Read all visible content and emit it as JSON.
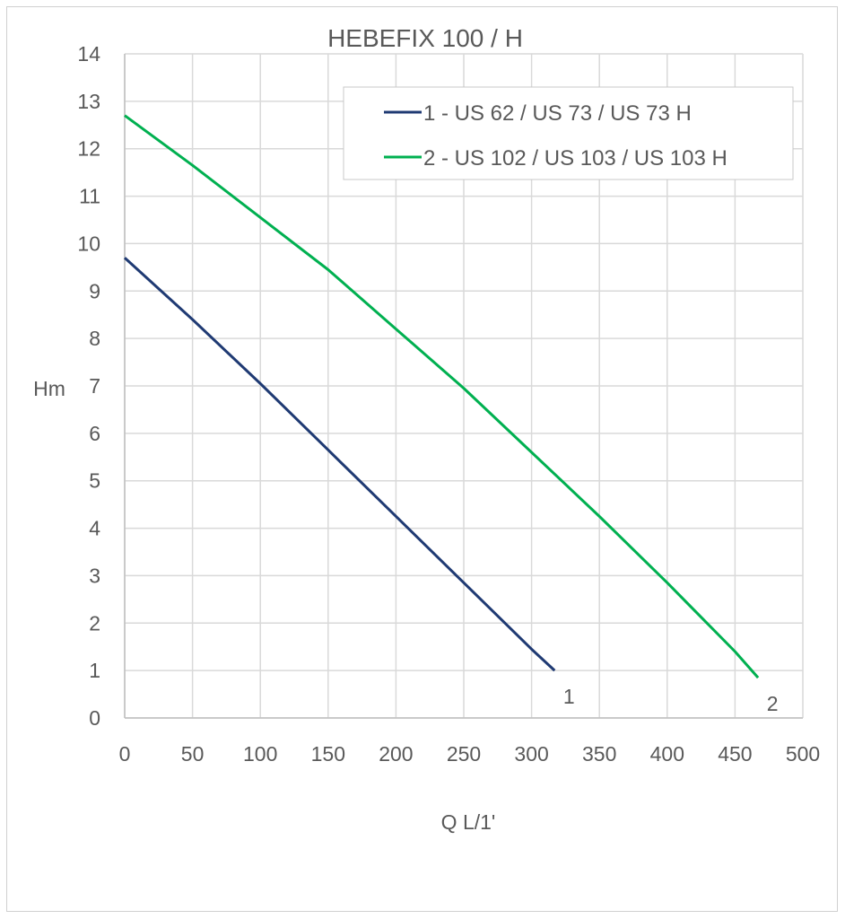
{
  "chart_data": {
    "type": "line",
    "title": "HEBEFIX 100 / H",
    "xlabel": "Q L/1'",
    "ylabel": "Hm",
    "xlim": [
      0,
      500
    ],
    "ylim": [
      0,
      14
    ],
    "xticks": [
      0,
      50,
      100,
      150,
      200,
      250,
      300,
      350,
      400,
      450,
      500
    ],
    "yticks": [
      0,
      1,
      2,
      3,
      4,
      5,
      6,
      7,
      8,
      9,
      10,
      11,
      12,
      13,
      14
    ],
    "grid": true,
    "legend_position": "top-right",
    "series": [
      {
        "name": "1 - US 62 / US 73 / US 73 H",
        "end_label": "1",
        "color": "#1f3a73",
        "x": [
          0,
          50,
          100,
          150,
          200,
          250,
          300,
          317
        ],
        "y": [
          9.7,
          8.4,
          7.05,
          5.65,
          4.25,
          2.85,
          1.45,
          1.0
        ]
      },
      {
        "name": "2 - US 102 / US 103 / US 103 H",
        "end_label": "2",
        "color": "#00b050",
        "x": [
          0,
          50,
          100,
          150,
          200,
          250,
          300,
          350,
          400,
          450,
          467
        ],
        "y": [
          12.7,
          11.65,
          10.55,
          9.45,
          8.2,
          6.95,
          5.6,
          4.25,
          2.85,
          1.4,
          0.85
        ]
      }
    ]
  }
}
